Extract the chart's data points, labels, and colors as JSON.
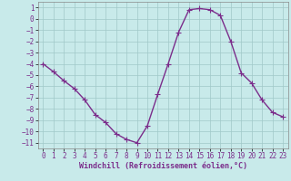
{
  "x": [
    0,
    1,
    2,
    3,
    4,
    5,
    6,
    7,
    8,
    9,
    10,
    11,
    12,
    13,
    14,
    15,
    16,
    17,
    18,
    19,
    20,
    21,
    22,
    23
  ],
  "y": [
    -4,
    -4.7,
    -5.5,
    -6.2,
    -7.2,
    -8.5,
    -9.2,
    -10.2,
    -10.7,
    -11.0,
    -9.5,
    -6.7,
    -4.0,
    -1.2,
    0.8,
    0.9,
    0.8,
    0.3,
    -2.0,
    -4.8,
    -5.7,
    -7.2,
    -8.3,
    -8.7
  ],
  "line_color": "#7b2d8b",
  "marker": "+",
  "markersize": 4,
  "linewidth": 1.0,
  "xlabel": "Windchill (Refroidissement éolien,°C)",
  "bg_color": "#c8eaea",
  "grid_color": "#a0c8c8",
  "tick_fontsize": 5.5,
  "xlabel_fontsize": 6.0,
  "xlim": [
    -0.5,
    23.5
  ],
  "ylim": [
    -11.5,
    1.5
  ],
  "yticks": [
    1,
    0,
    -1,
    -2,
    -3,
    -4,
    -5,
    -6,
    -7,
    -8,
    -9,
    -10,
    -11
  ],
  "xticks": [
    0,
    1,
    2,
    3,
    4,
    5,
    6,
    7,
    8,
    9,
    10,
    11,
    12,
    13,
    14,
    15,
    16,
    17,
    18,
    19,
    20,
    21,
    22,
    23
  ]
}
